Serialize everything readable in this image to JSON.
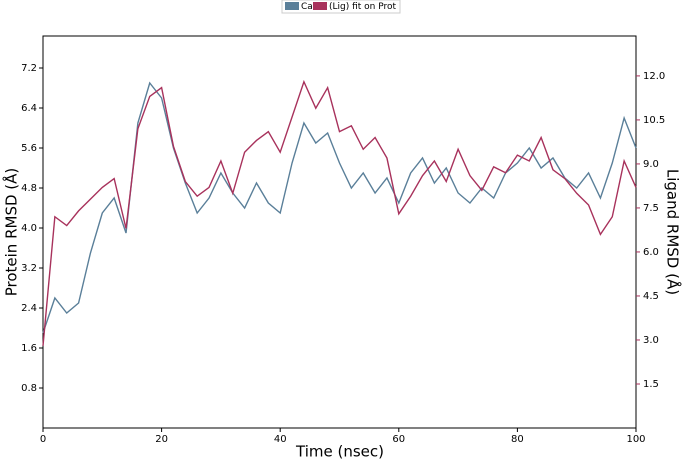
{
  "chart_data": {
    "type": "line",
    "xlabel": "Time (nsec)",
    "ylabel": "Protein RMSD (Å)",
    "y2label": "Ligand RMSD (Å)",
    "x": [
      0,
      2,
      4,
      6,
      8,
      10,
      12,
      14,
      16,
      18,
      20,
      22,
      24,
      26,
      28,
      30,
      32,
      34,
      36,
      38,
      40,
      42,
      44,
      46,
      48,
      50,
      52,
      54,
      56,
      58,
      60,
      62,
      64,
      66,
      68,
      70,
      72,
      74,
      76,
      78,
      80,
      82,
      84,
      86,
      88,
      90,
      92,
      94,
      96,
      98,
      100
    ],
    "series": [
      {
        "name": "Ca",
        "color": "#5a7f99",
        "axis": "y",
        "values": [
          1.9,
          2.6,
          2.3,
          2.5,
          3.5,
          4.3,
          4.6,
          3.9,
          6.1,
          6.9,
          6.6,
          5.6,
          4.9,
          4.3,
          4.6,
          5.1,
          4.7,
          4.4,
          4.9,
          4.5,
          4.3,
          5.3,
          6.1,
          5.7,
          5.9,
          5.3,
          4.8,
          5.1,
          4.7,
          5.0,
          4.5,
          5.1,
          5.4,
          4.9,
          5.2,
          4.7,
          4.5,
          4.8,
          4.6,
          5.1,
          5.3,
          5.6,
          5.2,
          5.4,
          5.0,
          4.8,
          5.1,
          4.6,
          5.3,
          6.2,
          5.6
        ]
      },
      {
        "name": "(Lig) fit on Prot",
        "color": "#a8325c",
        "axis": "y2",
        "values": [
          2.8,
          7.2,
          6.9,
          7.4,
          7.8,
          8.2,
          8.5,
          6.8,
          10.2,
          11.3,
          11.6,
          9.6,
          8.4,
          7.9,
          8.2,
          9.1,
          8.0,
          9.4,
          9.8,
          10.1,
          9.4,
          10.6,
          11.8,
          10.9,
          11.6,
          10.1,
          10.3,
          9.5,
          9.9,
          9.2,
          7.3,
          7.9,
          8.6,
          9.1,
          8.4,
          9.5,
          8.6,
          8.1,
          8.9,
          8.7,
          9.3,
          9.1,
          9.9,
          8.8,
          8.5,
          8.0,
          7.6,
          6.6,
          7.2,
          9.1,
          8.2
        ]
      }
    ],
    "xlim": [
      0,
      100
    ],
    "xticks": [
      0,
      20,
      40,
      60,
      80,
      100
    ],
    "ylim": [
      0,
      7.84
    ],
    "yticks": [
      0.8,
      1.6,
      2.4,
      3.2,
      {
        "value": 4,
        "label": "4.0"
      },
      4.8,
      5.6,
      6.4,
      7.2
    ],
    "y2lim": [
      0,
      13.36
    ],
    "y2ticks": [
      1.5,
      {
        "value": 3,
        "label": "3.0"
      },
      4.5,
      {
        "value": 6,
        "label": "6.0"
      },
      7.5,
      {
        "value": 9,
        "label": "9.0"
      },
      10.5,
      {
        "value": 12,
        "label": "12.0"
      }
    ],
    "y2color": "#a8325c"
  }
}
